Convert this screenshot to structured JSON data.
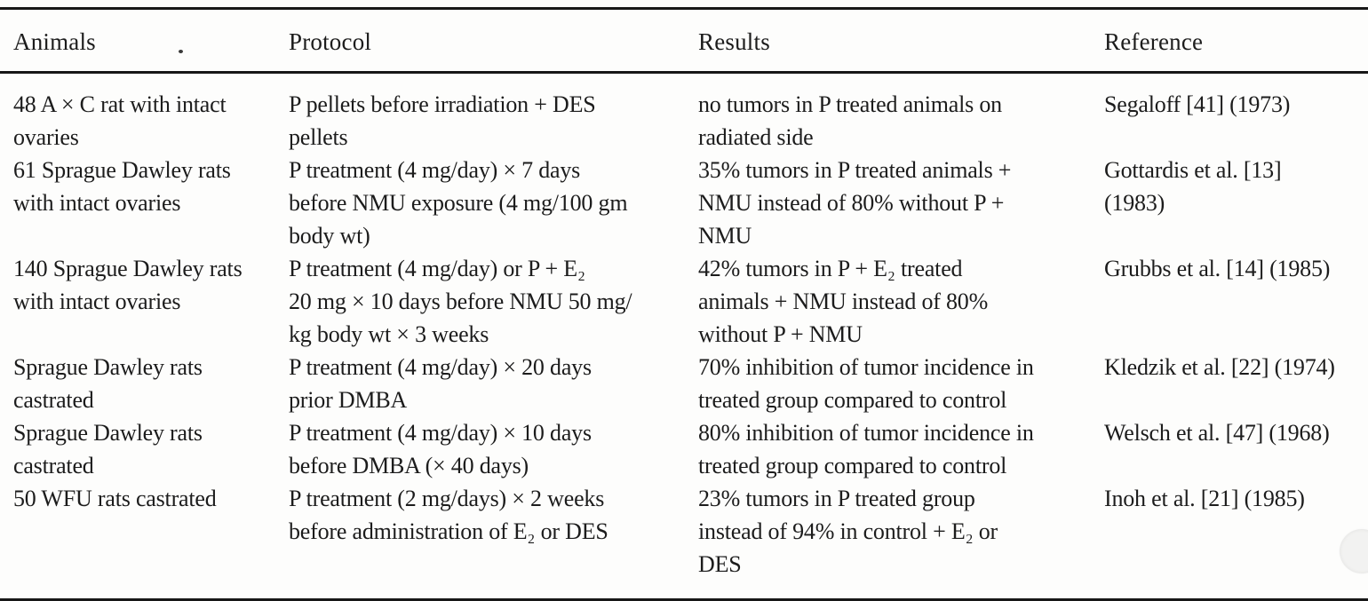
{
  "colors": {
    "paper": "#fdfdfc",
    "ink": "#1c1c1c",
    "rule": "#171717"
  },
  "table": {
    "columns": [
      {
        "label": "Animals"
      },
      {
        "label": "Protocol"
      },
      {
        "label": "Results"
      },
      {
        "label": "Reference"
      }
    ],
    "rows": [
      {
        "animals": "48 A × C rat with intact\novaries",
        "protocol": "P pellets before irradiation + DES\npellets",
        "results": "no tumors in P treated animals on\nradiated side",
        "reference": "Segaloff [41] (1973)"
      },
      {
        "animals": "61 Sprague Dawley rats\nwith intact ovaries",
        "protocol": "P treatment (4 mg/day) × 7 days\nbefore NMU exposure (4 mg/100 gm\nbody wt)",
        "results": "35% tumors in P treated animals +\nNMU instead of 80% without P +\nNMU",
        "reference": "Gottardis et al. [13]\n(1983)"
      },
      {
        "animals": "140 Sprague Dawley rats\nwith intact ovaries",
        "protocol": "P treatment (4 mg/day) or P + E₂\n20 mg × 10 days before NMU 50 mg/\nkg body wt × 3 weeks",
        "results": "42% tumors in P + E₂ treated\nanimals + NMU instead of 80%\nwithout P + NMU",
        "reference": "Grubbs et al. [14] (1985)"
      },
      {
        "animals": "Sprague Dawley rats\ncastrated",
        "protocol": "P treatment (4 mg/day) × 20 days\nprior DMBA",
        "results": "70% inhibition of tumor incidence in\ntreated group compared to control",
        "reference": "Kledzik et al. [22] (1974)"
      },
      {
        "animals": "Sprague Dawley rats\ncastrated",
        "protocol": "P treatment (4 mg/day) × 10 days\nbefore DMBA (× 40 days)",
        "results": "80% inhibition of tumor incidence in\ntreated group compared to control",
        "reference": "Welsch et al. [47] (1968)"
      },
      {
        "animals": "50 WFU rats castrated",
        "protocol": "P treatment (2 mg/days) × 2 weeks\nbefore administration of E₂ or DES",
        "results": "23% tumors in P treated group\ninstead of 94% in control + E₂ or\nDES",
        "reference": "Inoh et al. [21] (1985)"
      }
    ]
  }
}
